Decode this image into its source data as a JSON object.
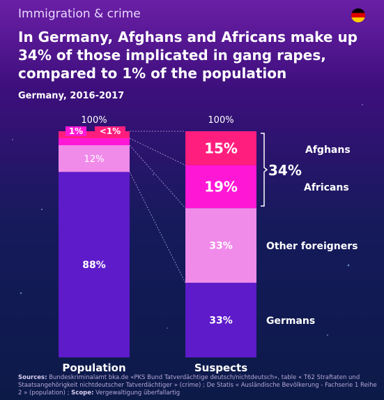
{
  "header": {
    "category": "Immigration & crime",
    "headline": "In Germany, Afghans and Africans make up 34% of those implicated in gang rapes, compared to 1% of the population",
    "subtitle": "Germany, 2016-2017"
  },
  "colors": {
    "germans": "#5d1bc9",
    "other_foreigners": "#f08bea",
    "africans": "#ff17d6",
    "afghans": "#ff1e7d"
  },
  "chart_data": {
    "type": "bar",
    "stacked": true,
    "categories": [
      "Population",
      "Suspects"
    ],
    "totals": [
      "100%",
      "100%"
    ],
    "ylim": [
      0,
      100
    ],
    "series": [
      {
        "name": "Germans",
        "values": [
          88,
          33
        ],
        "labels": [
          "88%",
          "33%"
        ]
      },
      {
        "name": "Other foreigners",
        "values": [
          12,
          33
        ],
        "labels": [
          "12%",
          "33%"
        ]
      },
      {
        "name": "Africans",
        "values": [
          1,
          19
        ],
        "labels": [
          "1%",
          "19%"
        ]
      },
      {
        "name": "Afghans",
        "values": [
          0.5,
          15
        ],
        "labels": [
          "<1%",
          "15%"
        ]
      }
    ],
    "bracket_label": "34%"
  },
  "footer": {
    "sources_label": "Sources:",
    "sources_text": "Bundeskriminalamt bka.de «PKS Bund Tatverdächtige deutsch/nichtdeutsch», table « T62 Straftaten und Staatsangehörigkeit nichtdeutscher Tatverdächtiger » (crime) ; De Statis « Ausländische Bevölkerung - Fachserie 1 Reihe 2 » (population) ;",
    "scope_label": "Scope:",
    "scope_text": "Vergewaltigung überfallartig"
  }
}
